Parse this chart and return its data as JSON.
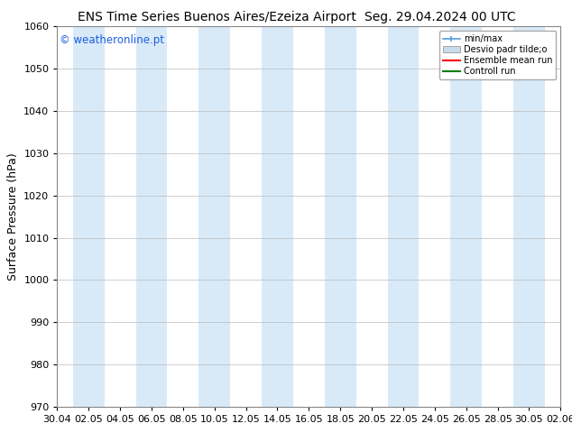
{
  "title_left": "ENS Time Series Buenos Aires/Ezeiza Airport",
  "title_right": "Seg. 29.04.2024 00 UTC",
  "ylabel": "Surface Pressure (hPa)",
  "ylim": [
    970,
    1060
  ],
  "yticks": [
    970,
    980,
    990,
    1000,
    1010,
    1020,
    1030,
    1040,
    1050,
    1060
  ],
  "x_tick_labels": [
    "30.04",
    "02.05",
    "04.05",
    "06.05",
    "08.05",
    "10.05",
    "12.05",
    "14.05",
    "16.05",
    "18.05",
    "20.05",
    "22.05",
    "24.05",
    "26.05",
    "28.05",
    "30.05",
    "02.06"
  ],
  "background_color": "#ffffff",
  "plot_bg_color": "#ffffff",
  "shade_color": "#d8eaf8",
  "watermark": "© weatheronline.pt",
  "watermark_color": "#1a5ce0",
  "legend_label_minmax": "min/max",
  "legend_label_desvio": "Desvio padr tilde;o",
  "legend_label_ensemble": "Ensemble mean run",
  "legend_label_control": "Controll run",
  "legend_color_minmax": "#5b9bd5",
  "legend_color_desvio": "#c8dcea",
  "legend_color_ensemble": "#ff0000",
  "legend_color_control": "#008000",
  "title_fontsize": 10,
  "axis_fontsize": 9,
  "tick_fontsize": 8
}
